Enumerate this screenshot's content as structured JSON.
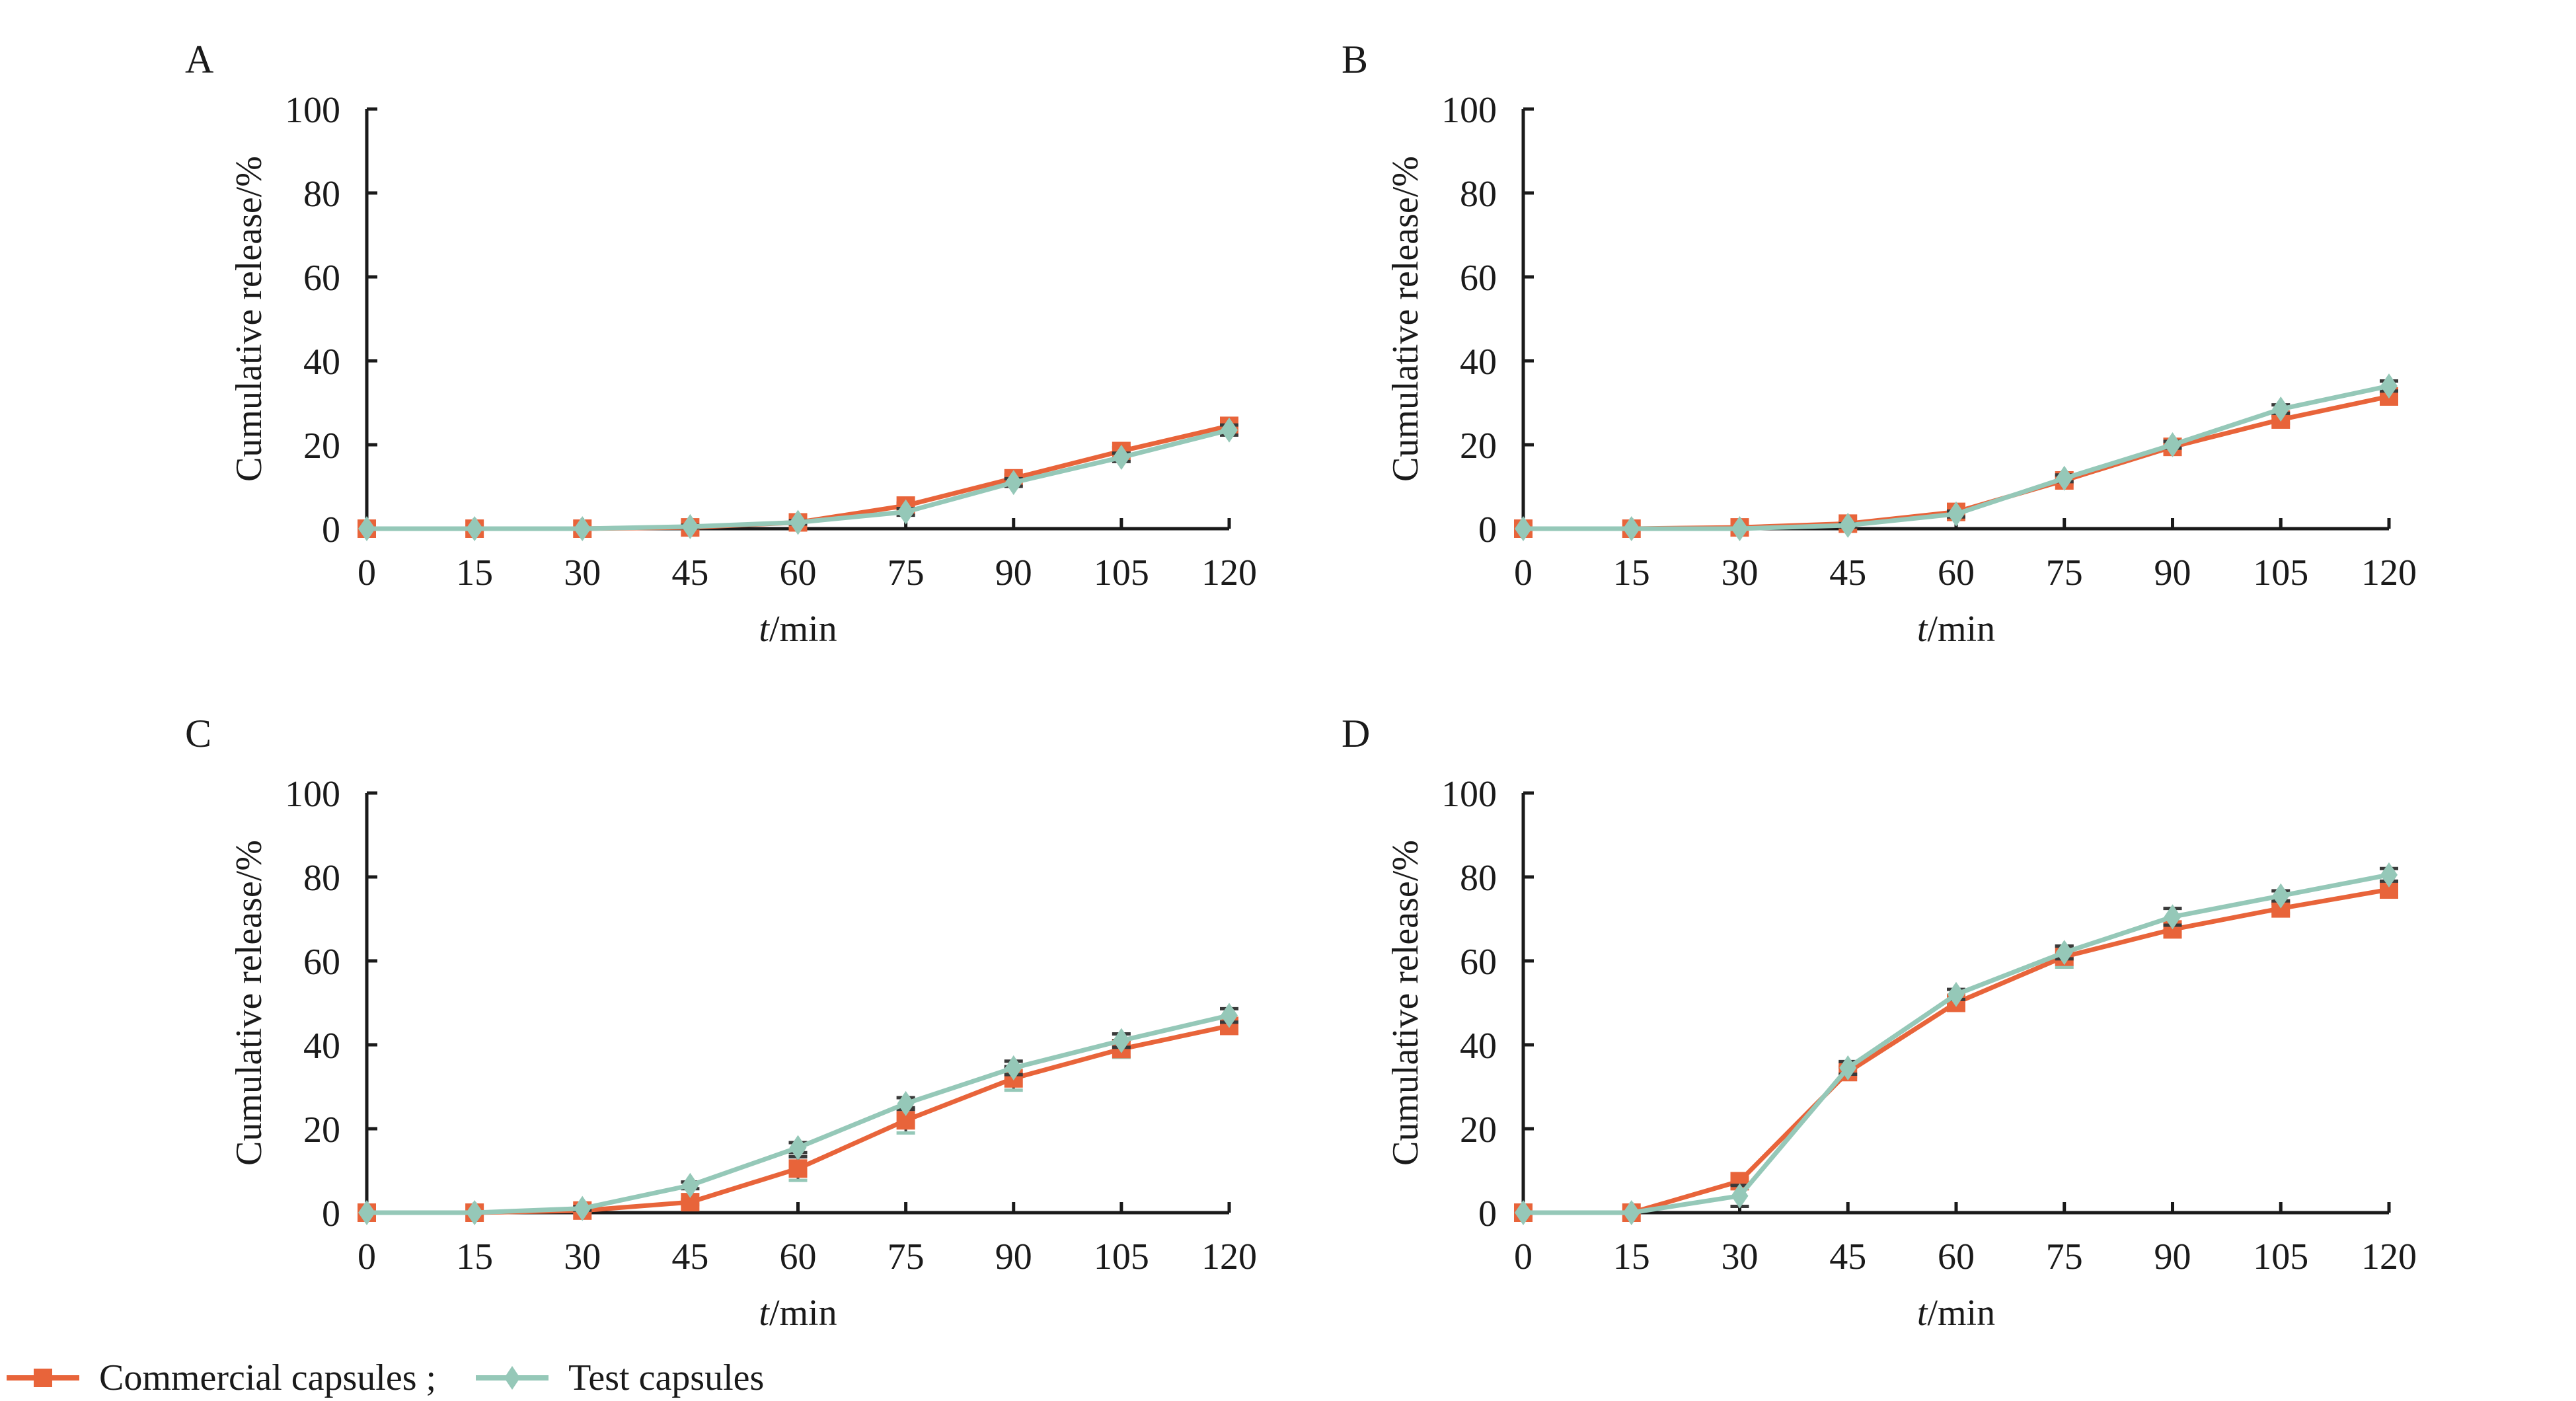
{
  "figure": {
    "legend": {
      "items": [
        {
          "label": "Commercial capsules ;",
          "marker": "square",
          "color": "#E8643A"
        },
        {
          "label": "Test capsules",
          "marker": "diamond",
          "color": "#95C8B8"
        }
      ],
      "placement": "bottom-left"
    },
    "error_bar_color": "#3A3A3A",
    "axis_color": "#1A1A1A"
  },
  "chart_data": [
    {
      "panel": "A",
      "type": "line",
      "title": "",
      "xlabel_italic": "t",
      "xlabel_rest": "/min",
      "xlabel": "t/min",
      "ylabel": "Cumulative release/%",
      "x": [
        0,
        15,
        30,
        45,
        60,
        75,
        90,
        105,
        120
      ],
      "x_ticks": [
        "0",
        "15",
        "30",
        "45",
        "60",
        "75",
        "90",
        "105",
        "120"
      ],
      "y_ticks": [
        "0",
        "20",
        "40",
        "60",
        "80",
        "100"
      ],
      "xlim": [
        0,
        120
      ],
      "ylim": [
        0,
        100
      ],
      "grid": false,
      "series": [
        {
          "name": "Commercial capsules",
          "values": [
            0,
            0,
            0,
            0.3,
            1.5,
            5.5,
            12,
            18.5,
            24.5
          ],
          "errors": [
            0,
            0,
            0,
            0.3,
            0.4,
            0.6,
            0.8,
            0.8,
            1.0
          ]
        },
        {
          "name": "Test capsules",
          "values": [
            0,
            0,
            0,
            0.5,
            1.5,
            4.0,
            11,
            17,
            23.5
          ],
          "errors": [
            0,
            0,
            0,
            0.3,
            0.4,
            0.8,
            0.9,
            1.0,
            1.2
          ]
        }
      ]
    },
    {
      "panel": "B",
      "type": "line",
      "title": "",
      "xlabel_italic": "t",
      "xlabel_rest": "/min",
      "xlabel": "t/min",
      "ylabel": "Cumulative release/%",
      "x": [
        0,
        15,
        30,
        45,
        60,
        75,
        90,
        105,
        120
      ],
      "x_ticks": [
        "0",
        "15",
        "30",
        "45",
        "60",
        "75",
        "90",
        "105",
        "120"
      ],
      "y_ticks": [
        "0",
        "20",
        "40",
        "60",
        "80",
        "100"
      ],
      "xlim": [
        0,
        120
      ],
      "ylim": [
        0,
        100
      ],
      "grid": false,
      "series": [
        {
          "name": "Commercial capsules",
          "values": [
            0,
            0,
            0.3,
            1.2,
            4.0,
            11.5,
            19.5,
            26,
            31.5
          ],
          "errors": [
            0,
            0,
            0.2,
            0.4,
            0.6,
            0.8,
            0.8,
            0.9,
            1.0
          ]
        },
        {
          "name": "Test capsules",
          "values": [
            0,
            0,
            0,
            0.8,
            3.5,
            12,
            20,
            28.5,
            34
          ],
          "errors": [
            0,
            0,
            0,
            0.4,
            0.7,
            0.8,
            0.8,
            1.0,
            1.2
          ]
        }
      ]
    },
    {
      "panel": "C",
      "type": "line",
      "title": "",
      "xlabel_italic": "t",
      "xlabel_rest": "/min",
      "xlabel": "t/min",
      "ylabel": "Cumulative release/%",
      "x": [
        0,
        15,
        30,
        45,
        60,
        75,
        90,
        105,
        120
      ],
      "x_ticks": [
        "0",
        "15",
        "30",
        "45",
        "60",
        "75",
        "90",
        "105",
        "120"
      ],
      "y_ticks": [
        "0",
        "20",
        "40",
        "60",
        "80",
        "100"
      ],
      "xlim": [
        0,
        120
      ],
      "ylim": [
        0,
        100
      ],
      "grid": false,
      "series": [
        {
          "name": "Commercial capsules",
          "values": [
            0,
            0,
            0.5,
            2.5,
            10.5,
            22,
            32,
            39,
            44.5
          ],
          "errors": [
            0,
            0,
            0.3,
            0.6,
            2.8,
            3.0,
            2.8,
            2.0,
            1.5
          ]
        },
        {
          "name": "Test capsules",
          "values": [
            0,
            0,
            1.0,
            6.5,
            15.5,
            26,
            34.5,
            41,
            47
          ],
          "errors": [
            0,
            0,
            0.4,
            0.8,
            1.2,
            1.4,
            1.6,
            1.6,
            1.6
          ]
        }
      ]
    },
    {
      "panel": "D",
      "type": "line",
      "title": "",
      "xlabel_italic": "t",
      "xlabel_rest": "/min",
      "xlabel": "t/min",
      "ylabel": "Cumulative release/%",
      "x": [
        0,
        15,
        30,
        45,
        60,
        75,
        90,
        105,
        120
      ],
      "x_ticks": [
        "0",
        "15",
        "30",
        "45",
        "60",
        "75",
        "90",
        "105",
        "120"
      ],
      "y_ticks": [
        "0",
        "20",
        "40",
        "60",
        "80",
        "100"
      ],
      "xlim": [
        0,
        120
      ],
      "ylim": [
        0,
        100
      ],
      "grid": false,
      "series": [
        {
          "name": "Commercial capsules",
          "values": [
            0,
            0,
            7.5,
            33.5,
            50,
            61,
            67.5,
            72.5,
            77
          ],
          "errors": [
            0,
            0,
            1.0,
            1.2,
            1.0,
            2.5,
            1.2,
            1.2,
            1.0
          ]
        },
        {
          "name": "Test capsules",
          "values": [
            0,
            0,
            4.0,
            34.5,
            52,
            62,
            70.5,
            75.5,
            80.5
          ],
          "errors": [
            0,
            0,
            2.5,
            1.5,
            1.2,
            1.5,
            2.0,
            1.2,
            1.5
          ]
        }
      ]
    }
  ]
}
